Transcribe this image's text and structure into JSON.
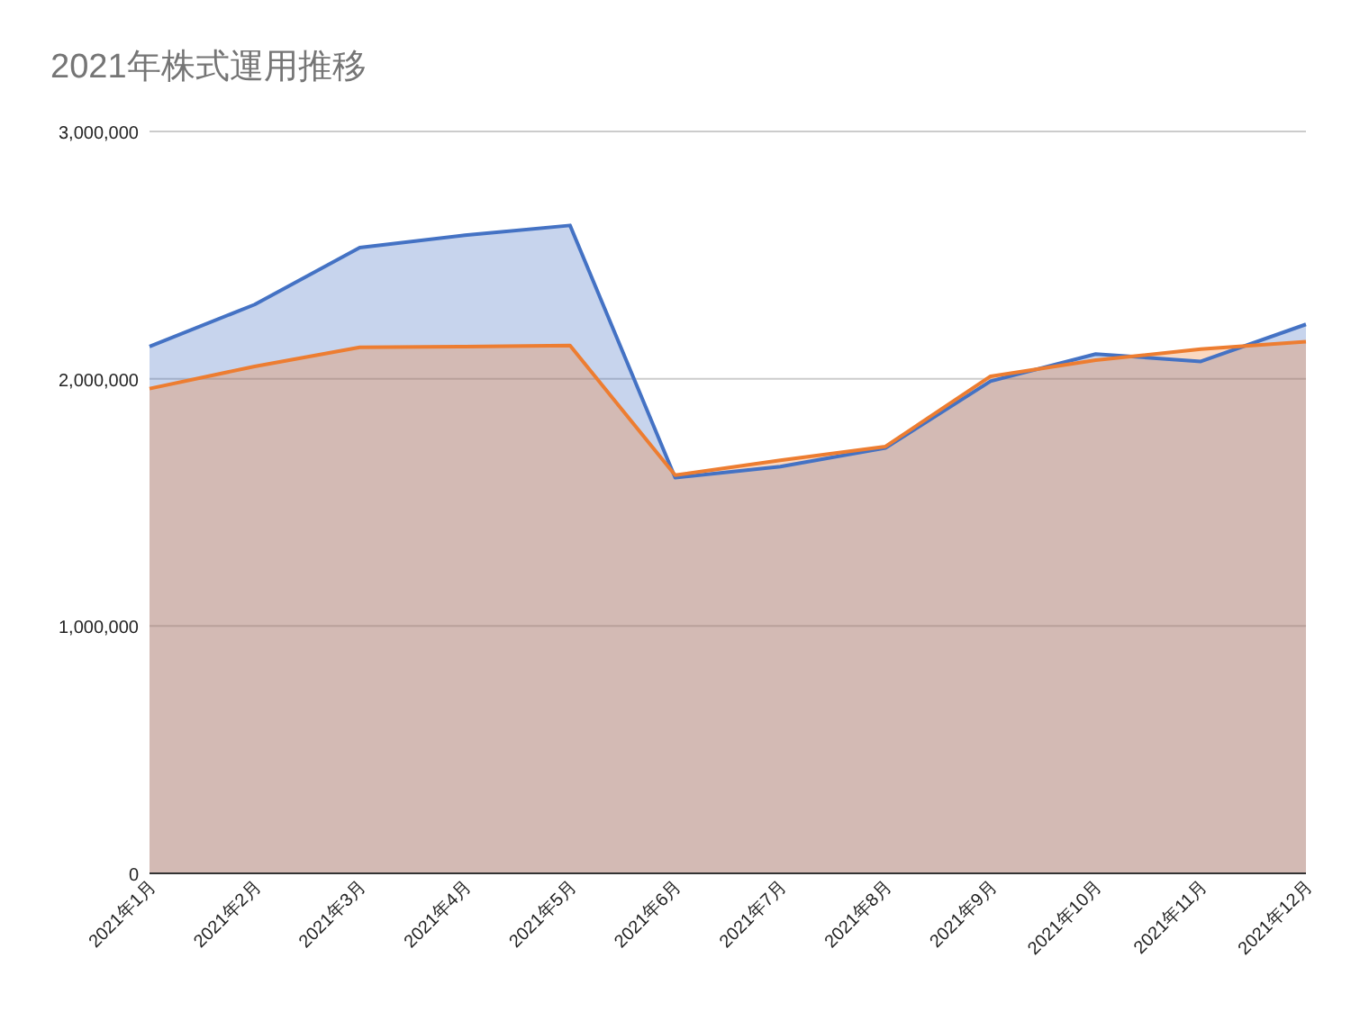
{
  "chart_data": {
    "type": "area",
    "title": "2021年株式運用推移",
    "categories": [
      "2021年1月",
      "2021年2月",
      "2021年3月",
      "2021年4月",
      "2021年5月",
      "2021年6月",
      "2021年7月",
      "2021年8月",
      "2021年9月",
      "2021年10月",
      "2021年11月",
      "2021年12月"
    ],
    "series": [
      {
        "color": "#4472c4",
        "values": [
          2130000,
          2300000,
          2530000,
          2580000,
          2620000,
          1600000,
          1645000,
          1720000,
          1990000,
          2100000,
          2070000,
          2220000
        ]
      },
      {
        "color": "#ed7d31",
        "values": [
          1960000,
          2050000,
          2127000,
          2130000,
          2134000,
          1610000,
          1670000,
          1726000,
          2010000,
          2075000,
          2120000,
          2150000
        ]
      }
    ],
    "ylim": [
      0,
      3000000
    ],
    "yticks": [
      {
        "value": 0,
        "label": "0"
      },
      {
        "value": 1000000,
        "label": "1,000,000"
      },
      {
        "value": 2000000,
        "label": "2,000,000"
      },
      {
        "value": 3000000,
        "label": "3,000,000"
      }
    ],
    "grid": "y"
  }
}
